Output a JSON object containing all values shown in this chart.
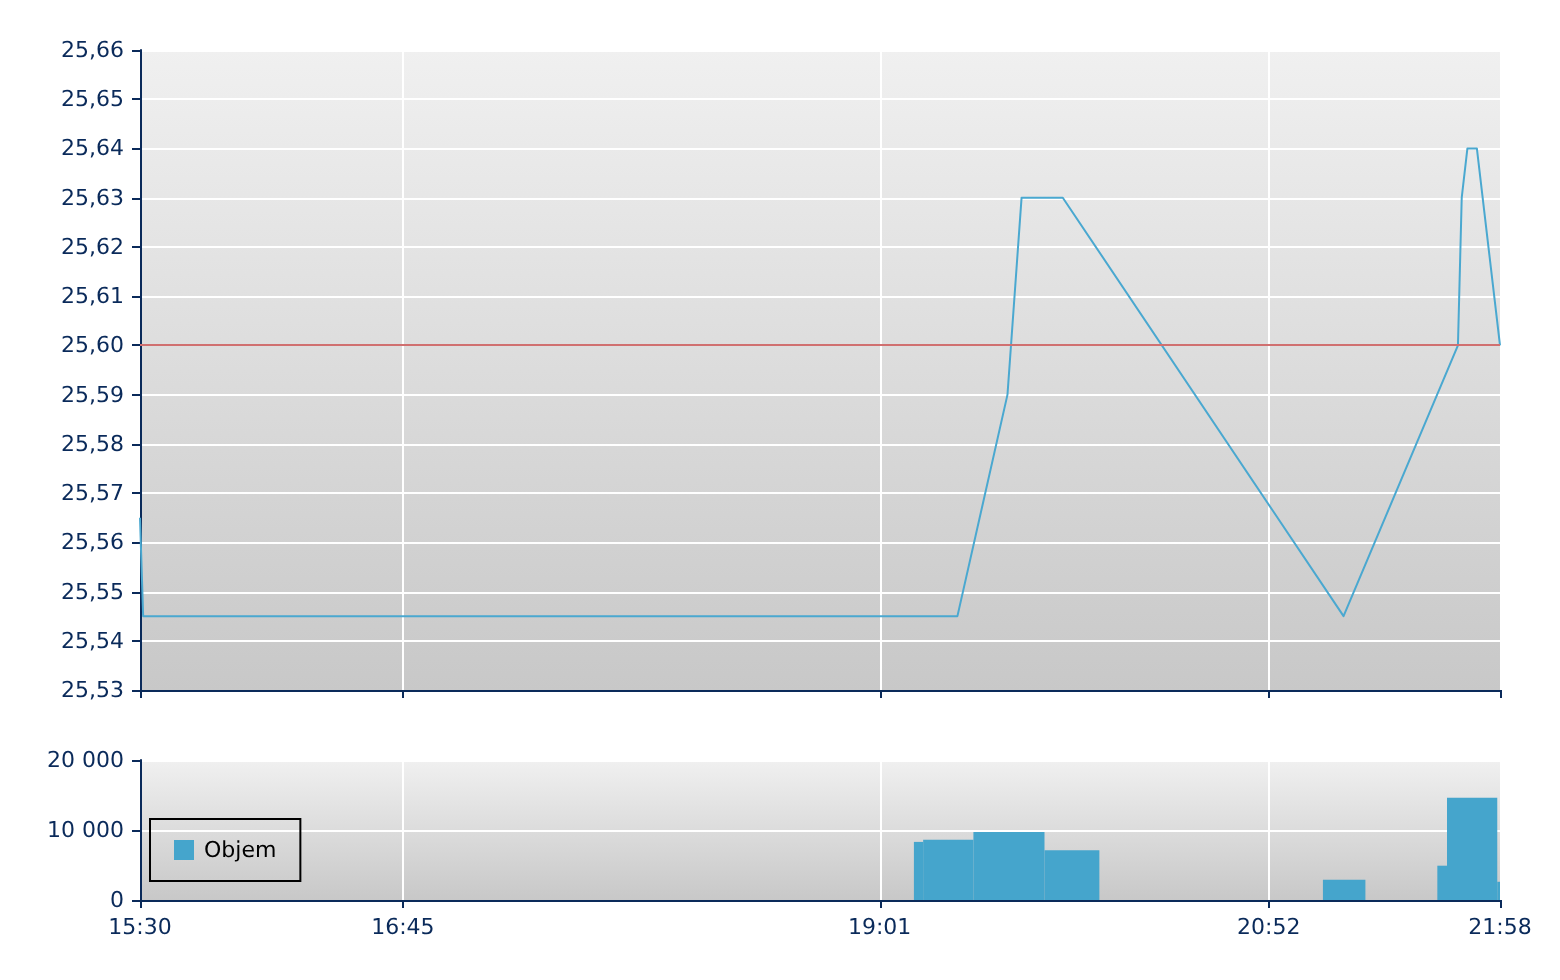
{
  "chart_data": [
    {
      "type": "line",
      "x": [
        15.5,
        15.515,
        19.387,
        19.625,
        19.692,
        19.888,
        21.223,
        21.767,
        21.785,
        21.812,
        21.857,
        21.967
      ],
      "values": [
        25.565,
        25.545,
        25.545,
        25.59,
        25.63,
        25.63,
        25.545,
        25.6,
        25.63,
        25.64,
        25.64,
        25.6
      ],
      "color": "#4aa8d0",
      "marker": "none",
      "xlim": [
        15.5,
        21.967
      ],
      "xticks": [
        {
          "value": 15.5,
          "label": null
        },
        {
          "value": 16.75,
          "label": null
        },
        {
          "value": 19.017,
          "label": null
        },
        {
          "value": 20.867,
          "label": null
        },
        {
          "value": 21.967,
          "label": null
        }
      ],
      "ylim": [
        25.53,
        25.66
      ],
      "yticks": [
        {
          "value": 25.53,
          "label": "25,53"
        },
        {
          "value": 25.54,
          "label": "25,54"
        },
        {
          "value": 25.55,
          "label": "25,55"
        },
        {
          "value": 25.56,
          "label": "25,56"
        },
        {
          "value": 25.57,
          "label": "25,57"
        },
        {
          "value": 25.58,
          "label": "25,58"
        },
        {
          "value": 25.59,
          "label": "25,59"
        },
        {
          "value": 25.6,
          "label": "25,60"
        },
        {
          "value": 25.61,
          "label": "25,61"
        },
        {
          "value": 25.62,
          "label": "25,62"
        },
        {
          "value": 25.63,
          "label": "25,63"
        },
        {
          "value": 25.64,
          "label": "25,64"
        },
        {
          "value": 25.65,
          "label": "25,65"
        },
        {
          "value": 25.66,
          "label": "25,66"
        }
      ],
      "ref_lines": [
        {
          "axis": "y",
          "value": 25.6,
          "color": "#d07070"
        }
      ],
      "grid": true,
      "tick_labels": "y"
    },
    {
      "type": "histogram",
      "bins": [
        19.18,
        19.224,
        19.463,
        19.801,
        20.062,
        21.125,
        21.327,
        21.669,
        21.715,
        21.954,
        21.967
      ],
      "series": [
        {
          "name": "Objem",
          "color": "#45a5cc",
          "values": [
            8300,
            8600,
            9700,
            7100,
            0,
            2900,
            0,
            4900,
            14600,
            2600
          ]
        }
      ],
      "xlim": [
        15.5,
        21.967
      ],
      "xticks": [
        {
          "value": 15.5,
          "label": "15:30"
        },
        {
          "value": 16.75,
          "label": "16:45"
        },
        {
          "value": 19.017,
          "label": "19:01"
        },
        {
          "value": 20.867,
          "label": "20:52"
        },
        {
          "value": 21.967,
          "label": "21:58"
        }
      ],
      "ylim": [
        0,
        20000
      ],
      "yticks": [
        0,
        {
          "value": 10000,
          "label": "10 000"
        },
        {
          "value": 20000,
          "label": "20 000"
        }
      ],
      "grid": true,
      "legend": "left"
    }
  ]
}
